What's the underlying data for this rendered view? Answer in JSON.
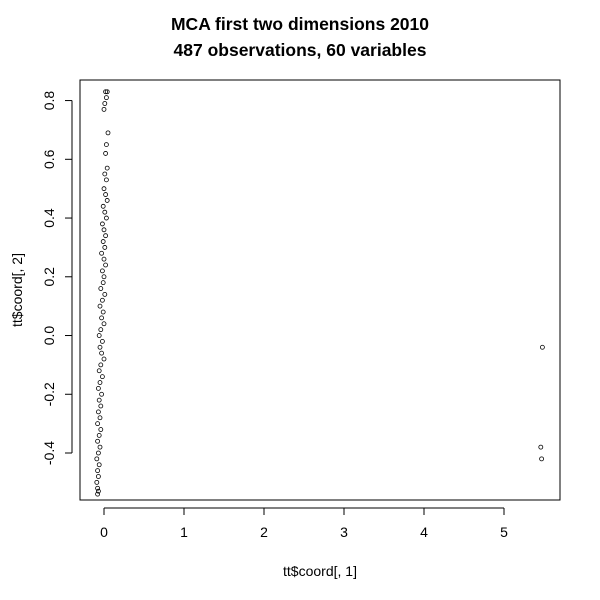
{
  "chart_data": {
    "type": "scatter",
    "title": "MCA first two dimensions 2010",
    "subtitle": "487 observations, 60 variables",
    "xlabel": "tt$coord[, 1]",
    "ylabel": "tt$coord[, 2]",
    "xlim": [
      -0.3,
      5.7
    ],
    "ylim": [
      -0.56,
      0.87
    ],
    "xticks": [
      0,
      1,
      2,
      3,
      4,
      5
    ],
    "yticks": [
      -0.4,
      -0.2,
      0.0,
      0.2,
      0.4,
      0.6,
      0.8
    ],
    "ytick_labels": [
      "-0.4",
      "-0.2",
      "0.0",
      "0.2",
      "0.4",
      "0.6",
      "0.8"
    ],
    "grid": false,
    "legend": "none",
    "marker": "open circle",
    "point_color": "#000000",
    "cluster": {
      "description_count": 484,
      "x_range": [
        -0.09,
        0.06
      ],
      "y_range": [
        -0.54,
        0.83
      ]
    },
    "points": [
      {
        "x": 0.02,
        "y": 0.83
      },
      {
        "x": 0.04,
        "y": 0.83
      },
      {
        "x": 0.03,
        "y": 0.81
      },
      {
        "x": 0.01,
        "y": 0.79
      },
      {
        "x": 0.0,
        "y": 0.77
      },
      {
        "x": 0.05,
        "y": 0.69
      },
      {
        "x": 0.03,
        "y": 0.65
      },
      {
        "x": 0.02,
        "y": 0.62
      },
      {
        "x": 0.04,
        "y": 0.57
      },
      {
        "x": 0.01,
        "y": 0.55
      },
      {
        "x": 0.03,
        "y": 0.53
      },
      {
        "x": 0.0,
        "y": 0.5
      },
      {
        "x": 0.02,
        "y": 0.48
      },
      {
        "x": 0.04,
        "y": 0.46
      },
      {
        "x": -0.01,
        "y": 0.44
      },
      {
        "x": 0.01,
        "y": 0.42
      },
      {
        "x": 0.03,
        "y": 0.4
      },
      {
        "x": -0.02,
        "y": 0.38
      },
      {
        "x": 0.0,
        "y": 0.36
      },
      {
        "x": 0.02,
        "y": 0.34
      },
      {
        "x": -0.01,
        "y": 0.32
      },
      {
        "x": 0.01,
        "y": 0.3
      },
      {
        "x": -0.03,
        "y": 0.28
      },
      {
        "x": 0.0,
        "y": 0.26
      },
      {
        "x": 0.02,
        "y": 0.24
      },
      {
        "x": -0.02,
        "y": 0.22
      },
      {
        "x": 0.0,
        "y": 0.2
      },
      {
        "x": -0.01,
        "y": 0.18
      },
      {
        "x": -0.04,
        "y": 0.16
      },
      {
        "x": 0.01,
        "y": 0.14
      },
      {
        "x": -0.02,
        "y": 0.12
      },
      {
        "x": -0.05,
        "y": 0.1
      },
      {
        "x": -0.01,
        "y": 0.08
      },
      {
        "x": -0.03,
        "y": 0.06
      },
      {
        "x": 0.0,
        "y": 0.04
      },
      {
        "x": -0.04,
        "y": 0.02
      },
      {
        "x": -0.06,
        "y": 0.0
      },
      {
        "x": -0.02,
        "y": -0.02
      },
      {
        "x": -0.05,
        "y": -0.04
      },
      {
        "x": -0.03,
        "y": -0.06
      },
      {
        "x": 0.0,
        "y": -0.08
      },
      {
        "x": -0.04,
        "y": -0.1
      },
      {
        "x": -0.06,
        "y": -0.12
      },
      {
        "x": -0.02,
        "y": -0.14
      },
      {
        "x": -0.05,
        "y": -0.16
      },
      {
        "x": -0.07,
        "y": -0.18
      },
      {
        "x": -0.03,
        "y": -0.2
      },
      {
        "x": -0.06,
        "y": -0.22
      },
      {
        "x": -0.04,
        "y": -0.24
      },
      {
        "x": -0.07,
        "y": -0.26
      },
      {
        "x": -0.05,
        "y": -0.28
      },
      {
        "x": -0.08,
        "y": -0.3
      },
      {
        "x": -0.04,
        "y": -0.32
      },
      {
        "x": -0.06,
        "y": -0.34
      },
      {
        "x": -0.08,
        "y": -0.36
      },
      {
        "x": -0.05,
        "y": -0.38
      },
      {
        "x": -0.07,
        "y": -0.4
      },
      {
        "x": -0.09,
        "y": -0.42
      },
      {
        "x": -0.06,
        "y": -0.44
      },
      {
        "x": -0.08,
        "y": -0.46
      },
      {
        "x": -0.07,
        "y": -0.48
      },
      {
        "x": -0.09,
        "y": -0.5
      },
      {
        "x": -0.08,
        "y": -0.52
      },
      {
        "x": -0.07,
        "y": -0.53
      },
      {
        "x": -0.08,
        "y": -0.54
      },
      {
        "x": 5.48,
        "y": -0.04
      },
      {
        "x": 5.46,
        "y": -0.38
      },
      {
        "x": 5.47,
        "y": -0.42
      }
    ]
  }
}
